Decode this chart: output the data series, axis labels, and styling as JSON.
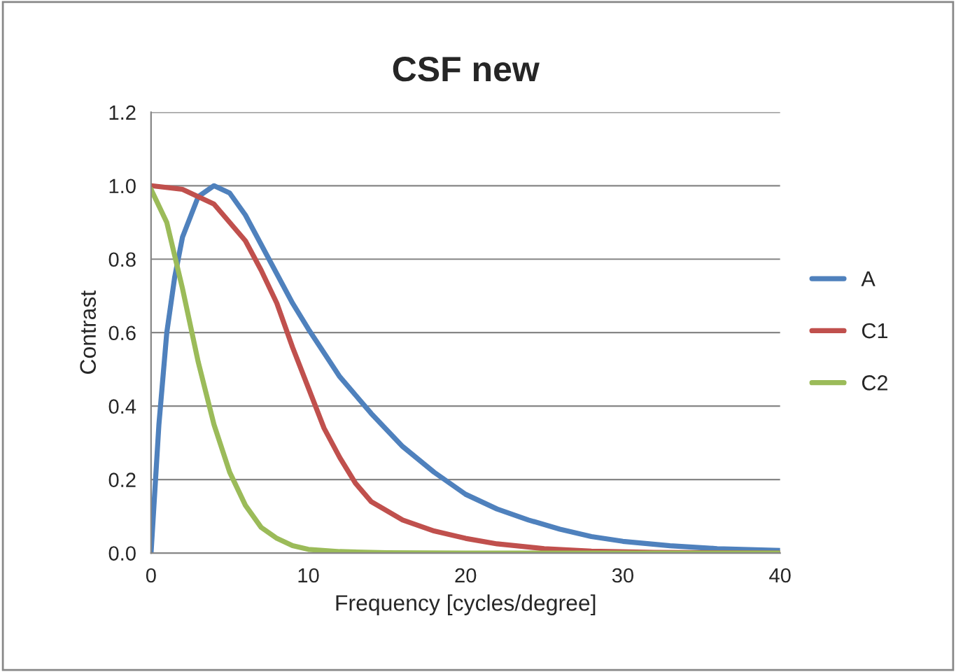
{
  "chart_data": {
    "type": "line",
    "title": "CSF new",
    "xlabel": "Frequency [cycles/degree]",
    "ylabel": "Contrast",
    "series": [
      {
        "name": "A",
        "color": "#4f81bd",
        "x": [
          0,
          0.5,
          1,
          1.5,
          2,
          3,
          4,
          5,
          6,
          7,
          8,
          9,
          10,
          12,
          14,
          16,
          18,
          20,
          22,
          24,
          26,
          28,
          30,
          33,
          36,
          40
        ],
        "values": [
          0,
          0.35,
          0.6,
          0.75,
          0.86,
          0.97,
          1.0,
          0.98,
          0.92,
          0.84,
          0.76,
          0.68,
          0.61,
          0.48,
          0.38,
          0.29,
          0.22,
          0.16,
          0.12,
          0.09,
          0.065,
          0.045,
          0.032,
          0.02,
          0.012,
          0.007
        ]
      },
      {
        "name": "C1",
        "color": "#c0504d",
        "x": [
          0,
          2,
          4,
          6,
          7,
          8,
          9,
          10,
          11,
          12,
          13,
          14,
          16,
          18,
          20,
          22,
          25,
          28,
          32,
          40
        ],
        "values": [
          1.0,
          0.99,
          0.95,
          0.85,
          0.77,
          0.68,
          0.56,
          0.45,
          0.34,
          0.26,
          0.19,
          0.14,
          0.09,
          0.06,
          0.04,
          0.025,
          0.012,
          0.005,
          0.002,
          0.0
        ]
      },
      {
        "name": "C2",
        "color": "#9bbb59",
        "x": [
          0,
          1,
          2,
          3,
          4,
          5,
          6,
          7,
          8,
          9,
          10,
          12,
          15,
          20,
          40
        ],
        "values": [
          0.99,
          0.9,
          0.72,
          0.52,
          0.35,
          0.22,
          0.13,
          0.07,
          0.04,
          0.02,
          0.01,
          0.004,
          0.001,
          0,
          0
        ]
      }
    ],
    "xlim": [
      0,
      40
    ],
    "xticks": [
      0,
      10,
      20,
      30,
      40
    ],
    "ylim": [
      0,
      1.2
    ],
    "yticks": [
      {
        "value": 0,
        "label": "0.0"
      },
      {
        "value": 0.2,
        "label": "0.2"
      },
      {
        "value": 0.4,
        "label": "0.4"
      },
      {
        "value": 0.6,
        "label": "0.6"
      },
      {
        "value": 0.8,
        "label": "0.8"
      },
      {
        "value": 1.0,
        "label": "1.0"
      },
      {
        "value": 1.2,
        "label": "1.2"
      }
    ],
    "grid": "y",
    "legend": "right",
    "marker": "none",
    "line_style": "solid"
  }
}
